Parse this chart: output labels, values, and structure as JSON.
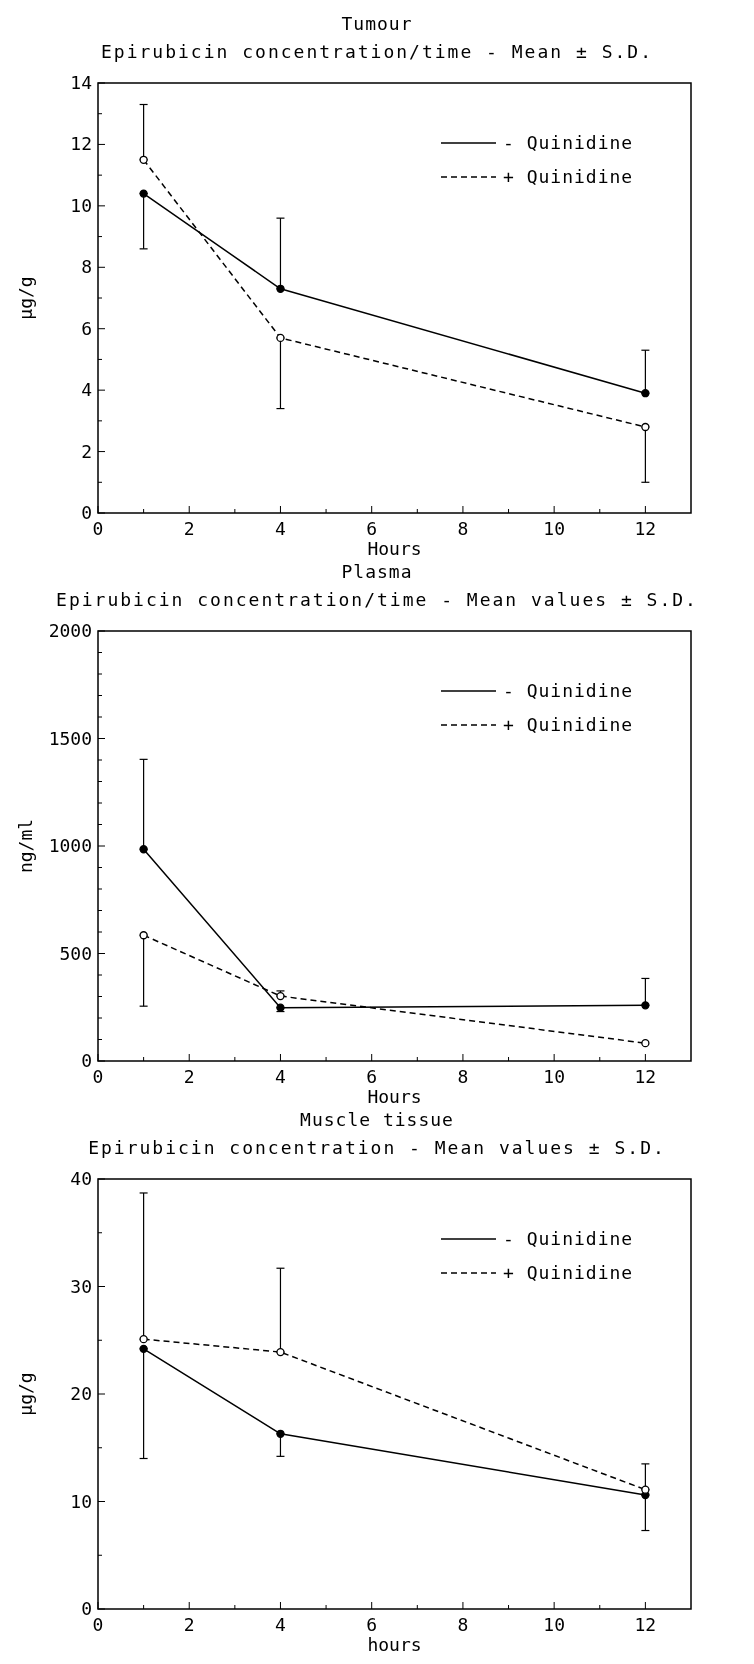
{
  "chart_data": [
    {
      "type": "line",
      "title": "Tumour",
      "subtitle": "Epirubicin concentration/time - Mean ± S.D.",
      "xlabel": "Hours",
      "ylabel": "µg/g",
      "xlim": [
        0,
        13
      ],
      "xticks": [
        0,
        {
          "value": 1,
          "label": null
        },
        2,
        {
          "value": 3,
          "label": null
        },
        4,
        {
          "value": 5,
          "label": null
        },
        6,
        {
          "value": 7,
          "label": null
        },
        8,
        {
          "value": 9,
          "label": null
        },
        10,
        {
          "value": 11,
          "label": null
        },
        12
      ],
      "ylim": [
        0,
        14
      ],
      "yticks": [
        0,
        {
          "value": 1,
          "label": null
        },
        2,
        {
          "value": 3,
          "label": null
        },
        4,
        {
          "value": 5,
          "label": null
        },
        6,
        {
          "value": 7,
          "label": null
        },
        8,
        {
          "value": 9,
          "label": null
        },
        10,
        {
          "value": 11,
          "label": null
        },
        12,
        {
          "value": 13,
          "label": null
        },
        14
      ],
      "legend": "top right",
      "marker": "circle",
      "x": [
        1,
        4,
        12
      ],
      "series": [
        {
          "name": "- Quinidine",
          "color": "#000000",
          "line_style": "solid",
          "values": [
            10.4,
            7.3,
            3.9
          ],
          "errors": [
            [
              8.6,
              10.4
            ],
            [
              7.3,
              9.6
            ],
            [
              3.9,
              5.3
            ]
          ]
        },
        {
          "name": "+ Quinidine",
          "color": "#000000",
          "line_style": "dashed",
          "values": [
            11.5,
            5.7,
            2.8
          ],
          "errors": [
            [
              11.5,
              13.3
            ],
            [
              3.4,
              5.7
            ],
            [
              1.0,
              2.8
            ]
          ]
        }
      ]
    },
    {
      "type": "line",
      "title": "Plasma",
      "subtitle": "Epirubicin concentration/time - Mean values ± S.D.",
      "xlabel": "Hours",
      "ylabel": "ng/ml",
      "xlim": [
        0,
        13
      ],
      "xticks": [
        0,
        {
          "value": 1,
          "label": null
        },
        2,
        {
          "value": 3,
          "label": null
        },
        4,
        {
          "value": 5,
          "label": null
        },
        6,
        {
          "value": 7,
          "label": null
        },
        8,
        {
          "value": 9,
          "label": null
        },
        10,
        {
          "value": 11,
          "label": null
        },
        12
      ],
      "ylim": [
        0,
        2000
      ],
      "yticks": [
        0,
        {
          "value": 100,
          "label": null
        },
        {
          "value": 200,
          "label": null
        },
        {
          "value": 300,
          "label": null
        },
        {
          "value": 400,
          "label": null
        },
        500,
        {
          "value": 600,
          "label": null
        },
        {
          "value": 700,
          "label": null
        },
        {
          "value": 800,
          "label": null
        },
        {
          "value": 900,
          "label": null
        },
        1000,
        {
          "value": 1100,
          "label": null
        },
        {
          "value": 1200,
          "label": null
        },
        {
          "value": 1300,
          "label": null
        },
        {
          "value": 1400,
          "label": null
        },
        1500,
        {
          "value": 1600,
          "label": null
        },
        {
          "value": 1700,
          "label": null
        },
        {
          "value": 1800,
          "label": null
        },
        {
          "value": 1900,
          "label": null
        },
        2000
      ],
      "legend": "top right",
      "marker": "circle",
      "x": [
        1,
        4,
        12
      ],
      "series": [
        {
          "name": "- Quinidine",
          "color": "#000000",
          "line_style": "solid",
          "values": [
            985,
            248,
            259
          ],
          "errors": [
            [
              985,
              1403
            ],
            [
              230,
              248
            ],
            [
              259,
              384
            ]
          ]
        },
        {
          "name": "+ Quinidine",
          "color": "#000000",
          "line_style": "dashed",
          "values": [
            585,
            302,
            83
          ],
          "errors": [
            [
              255,
              585
            ],
            [
              302,
              326
            ],
            null
          ]
        }
      ]
    },
    {
      "type": "line",
      "title": "Muscle tissue",
      "subtitle": "Epirubicin concentration - Mean values ± S.D.",
      "xlabel": "hours",
      "ylabel": "µg/g",
      "xlim": [
        0,
        13
      ],
      "xticks": [
        0,
        {
          "value": 1,
          "label": null
        },
        2,
        {
          "value": 3,
          "label": null
        },
        4,
        {
          "value": 5,
          "label": null
        },
        6,
        {
          "value": 7,
          "label": null
        },
        8,
        {
          "value": 9,
          "label": null
        },
        10,
        {
          "value": 11,
          "label": null
        },
        12
      ],
      "ylim": [
        0,
        40
      ],
      "yticks": [
        0,
        {
          "value": 5,
          "label": null
        },
        10,
        {
          "value": 15,
          "label": null
        },
        20,
        {
          "value": 25,
          "label": null
        },
        30,
        {
          "value": 35,
          "label": null
        },
        40
      ],
      "legend": "top right",
      "marker": "circle",
      "x": [
        1,
        4,
        12
      ],
      "series": [
        {
          "name": "- Quinidine",
          "color": "#000000",
          "line_style": "solid",
          "values": [
            24.2,
            16.3,
            10.6
          ],
          "errors": [
            [
              14.0,
              24.2
            ],
            [
              14.2,
              16.3
            ],
            [
              7.3,
              10.6
            ]
          ]
        },
        {
          "name": "+ Quinidine",
          "color": "#000000",
          "line_style": "dashed",
          "values": [
            25.1,
            23.9,
            11.1
          ],
          "errors": [
            [
              25.1,
              38.7
            ],
            [
              23.9,
              31.7
            ],
            [
              11.1,
              13.5
            ]
          ]
        }
      ]
    }
  ]
}
